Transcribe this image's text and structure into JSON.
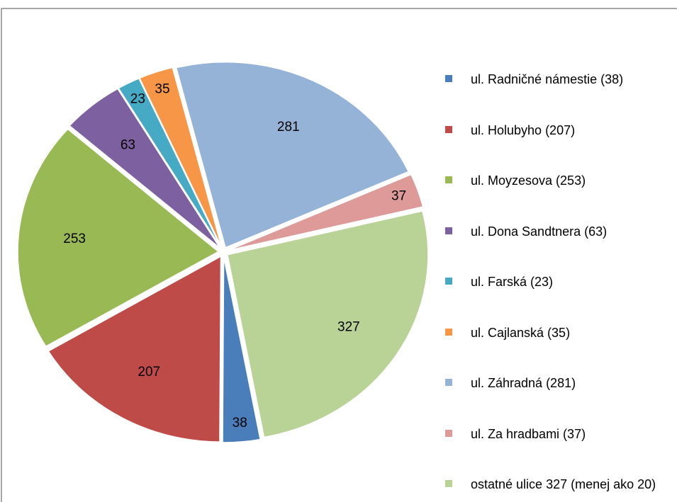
{
  "chart_data": {
    "type": "pie",
    "categories": [
      "ul. Radničné námestie  (38)",
      "ul. Holubyho (207)",
      "ul. Moyzesova  (253)",
      "ul.  Dona Sandtnera  (63)",
      "ul. Farská (23)",
      "ul. Cajlanská (35)",
      "ul. Záhradná  (281)",
      "ul. Za hradbami (37)",
      "ostatné ulice 327 (menej ako 20)"
    ],
    "values": [
      38,
      207,
      253,
      63,
      23,
      35,
      281,
      37,
      327
    ],
    "colors": [
      "#4a7ebb",
      "#be4b48",
      "#98b954",
      "#7d60a0",
      "#46aac5",
      "#f79646",
      "#95b3d7",
      "#dd9a99",
      "#b9d296"
    ],
    "legend": "right"
  }
}
